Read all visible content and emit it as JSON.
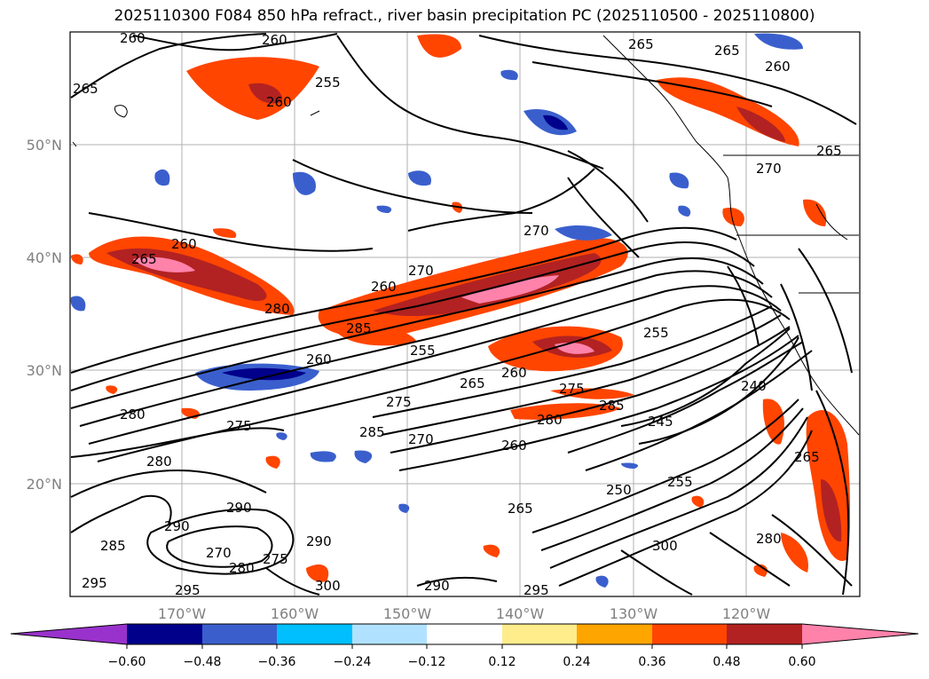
{
  "title": "2025110300 F084 850 hPa refract., river basin precipitation PC (2025110500 - 2025110800)",
  "lat_labels": [
    "50°N",
    "40°N",
    "30°N",
    "20°N"
  ],
  "lon_labels": [
    "170°W",
    "160°W",
    "150°W",
    "140°W",
    "130°W",
    "120°W"
  ],
  "contour_labels": [
    "260",
    "260",
    "265",
    "265",
    "260",
    "255",
    "260",
    "265",
    "260",
    "270",
    "265",
    "270",
    "260",
    "265",
    "280",
    "270",
    "260",
    "285",
    "255",
    "265",
    "260",
    "275",
    "240",
    "255",
    "275",
    "275",
    "280",
    "285",
    "280",
    "260",
    "245",
    "270",
    "285",
    "280",
    "250",
    "255",
    "265",
    "265",
    "290",
    "290",
    "270",
    "285",
    "280",
    "275",
    "300",
    "290",
    "300",
    "295",
    "295",
    "290",
    "295",
    "280"
  ],
  "colorbar": {
    "ticks": [
      "−0.60",
      "−0.48",
      "−0.36",
      "−0.24",
      "−0.12",
      "0.12",
      "0.24",
      "0.36",
      "0.48",
      "0.60"
    ],
    "colors": [
      "#9932cc",
      "#00008b",
      "#3a5fcd",
      "#00bfff",
      "#b0e2ff",
      "#ffffff",
      "#ffec8b",
      "#ffa500",
      "#ff4500",
      "#b22222",
      "#ff82ab"
    ]
  }
}
